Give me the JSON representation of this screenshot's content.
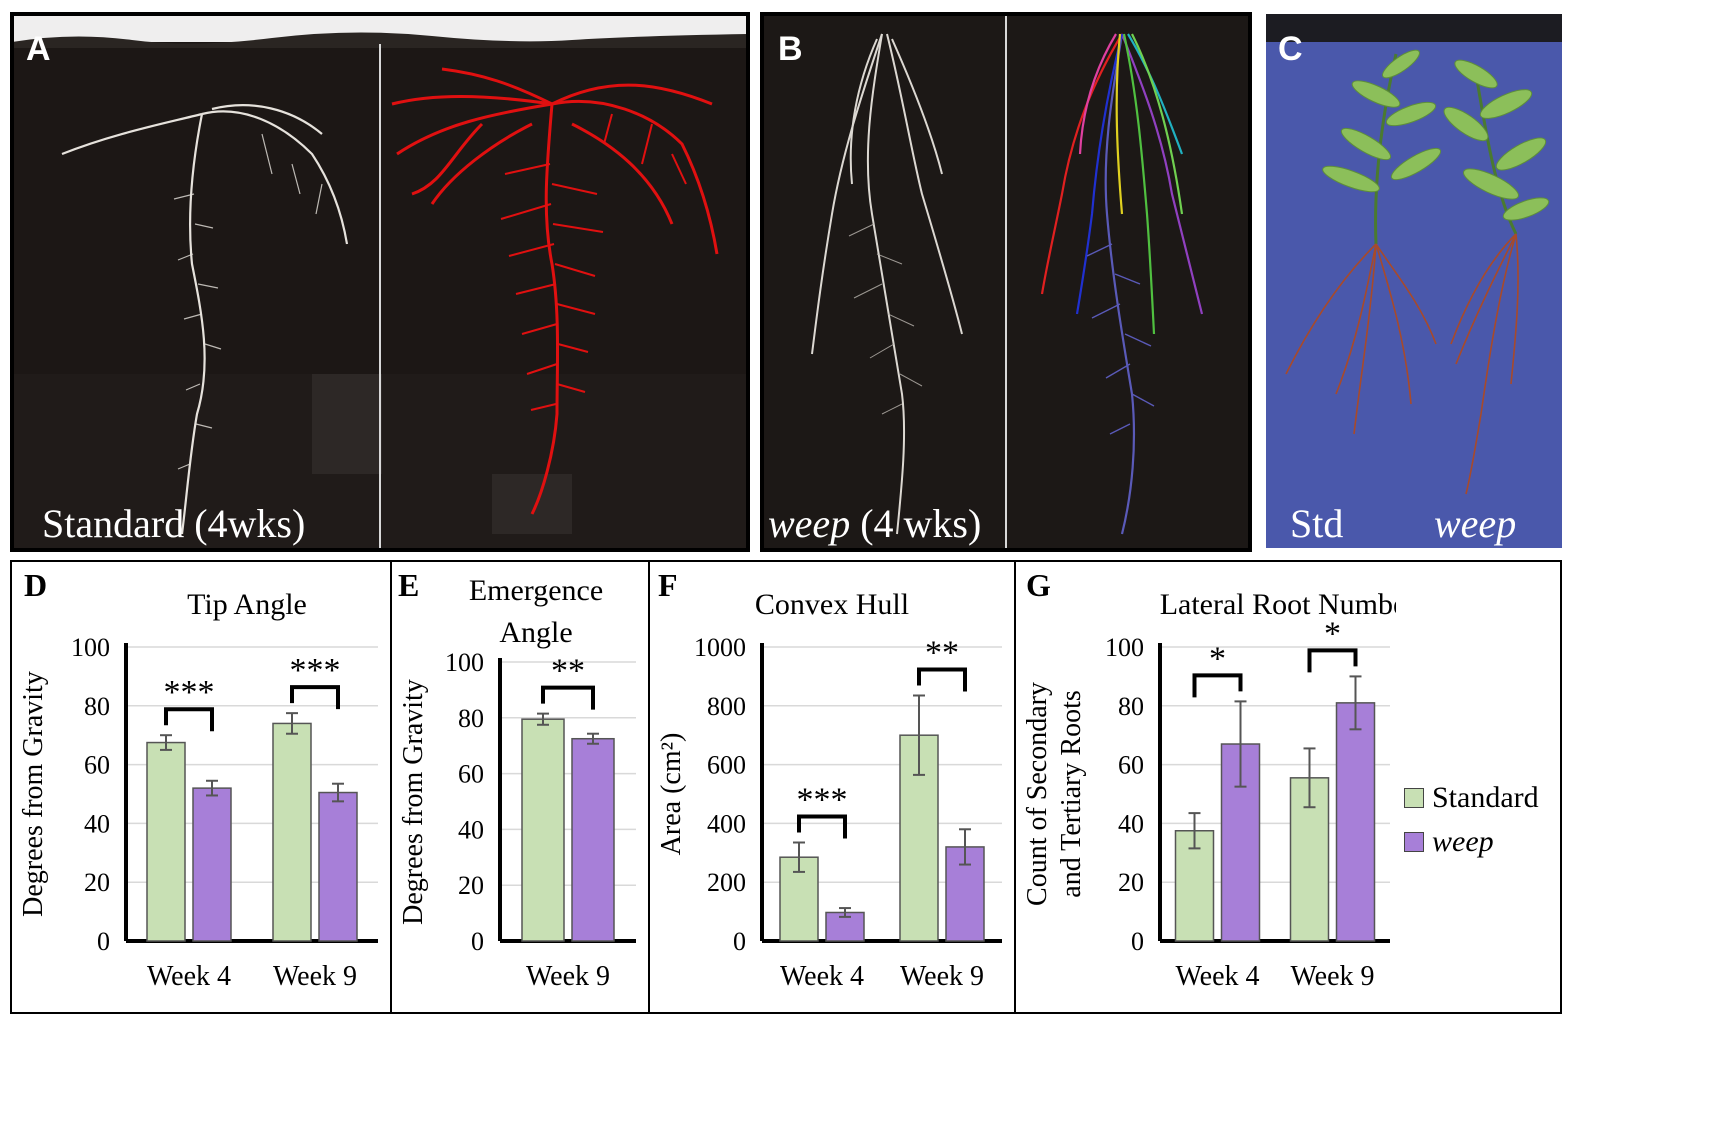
{
  "photos": {
    "A": {
      "letter": "A",
      "caption": "Standard (4wks)"
    },
    "B": {
      "letter": "B",
      "caption_italic": "weep",
      "caption_rest": " (4 wks)"
    },
    "C": {
      "letter": "C",
      "label_left": "Std",
      "label_right": "weep"
    }
  },
  "colors": {
    "standard_fill": "#c8e0b4",
    "weep_fill": "#a77fd8",
    "bar_stroke": "#555555",
    "trace_red": "#e01010",
    "photo_bg": "#1a1614",
    "board_blue": "#4455a8"
  },
  "legend": {
    "standard_label": "Standard",
    "weep_label": "weep"
  },
  "chart_data": [
    {
      "letter": "D",
      "type": "bar",
      "title": "Tip Angle",
      "ylabel": "Degrees from Gravity",
      "xlabel": "",
      "categories": [
        "Week 4",
        "Week 9"
      ],
      "ylim": [
        0,
        100
      ],
      "yticks": [
        0,
        20,
        40,
        60,
        80,
        100
      ],
      "grid": true,
      "series": [
        {
          "name": "Standard",
          "values": [
            67.5,
            74
          ],
          "errors": [
            2.5,
            3.5
          ]
        },
        {
          "name": "weep",
          "values": [
            52,
            50.5
          ],
          "errors": [
            2.5,
            3
          ]
        }
      ],
      "significance": [
        "***",
        "***"
      ]
    },
    {
      "letter": "E",
      "type": "bar",
      "title": "Emergence Angle",
      "ylabel": "Degrees from Gravity",
      "xlabel": "",
      "categories": [
        "Week 9"
      ],
      "ylim": [
        0,
        100
      ],
      "yticks": [
        0,
        20,
        40,
        60,
        80,
        100
      ],
      "grid": true,
      "series": [
        {
          "name": "Standard",
          "values": [
            79.5
          ],
          "errors": [
            2
          ]
        },
        {
          "name": "weep",
          "values": [
            72.5
          ],
          "errors": [
            1.8
          ]
        }
      ],
      "significance": [
        "**"
      ]
    },
    {
      "letter": "F",
      "type": "bar",
      "title": "Convex Hull",
      "ylabel": "Area (cm²)",
      "xlabel": "",
      "categories": [
        "Week 4",
        "Week 9"
      ],
      "ylim": [
        0,
        1000
      ],
      "yticks": [
        0,
        200,
        400,
        600,
        800,
        1000
      ],
      "grid": true,
      "series": [
        {
          "name": "Standard",
          "values": [
            285,
            700
          ],
          "errors": [
            50,
            135
          ]
        },
        {
          "name": "weep",
          "values": [
            97,
            320
          ],
          "errors": [
            15,
            60
          ]
        }
      ],
      "significance": [
        "***",
        "**"
      ]
    },
    {
      "letter": "G",
      "type": "bar",
      "title": "Lateral Root Number",
      "ylabel": "Count of Secondary and Tertiary Roots",
      "xlabel": "",
      "categories": [
        "Week 4",
        "Week 9"
      ],
      "ylim": [
        0,
        100
      ],
      "yticks": [
        0,
        20,
        40,
        60,
        80,
        100
      ],
      "grid": true,
      "legend_position": "right",
      "series": [
        {
          "name": "Standard",
          "values": [
            37.5,
            55.5
          ],
          "errors": [
            6,
            10
          ]
        },
        {
          "name": "weep",
          "values": [
            67,
            81
          ],
          "errors": [
            14.5,
            9
          ]
        }
      ],
      "significance": [
        "*",
        "*"
      ]
    }
  ]
}
